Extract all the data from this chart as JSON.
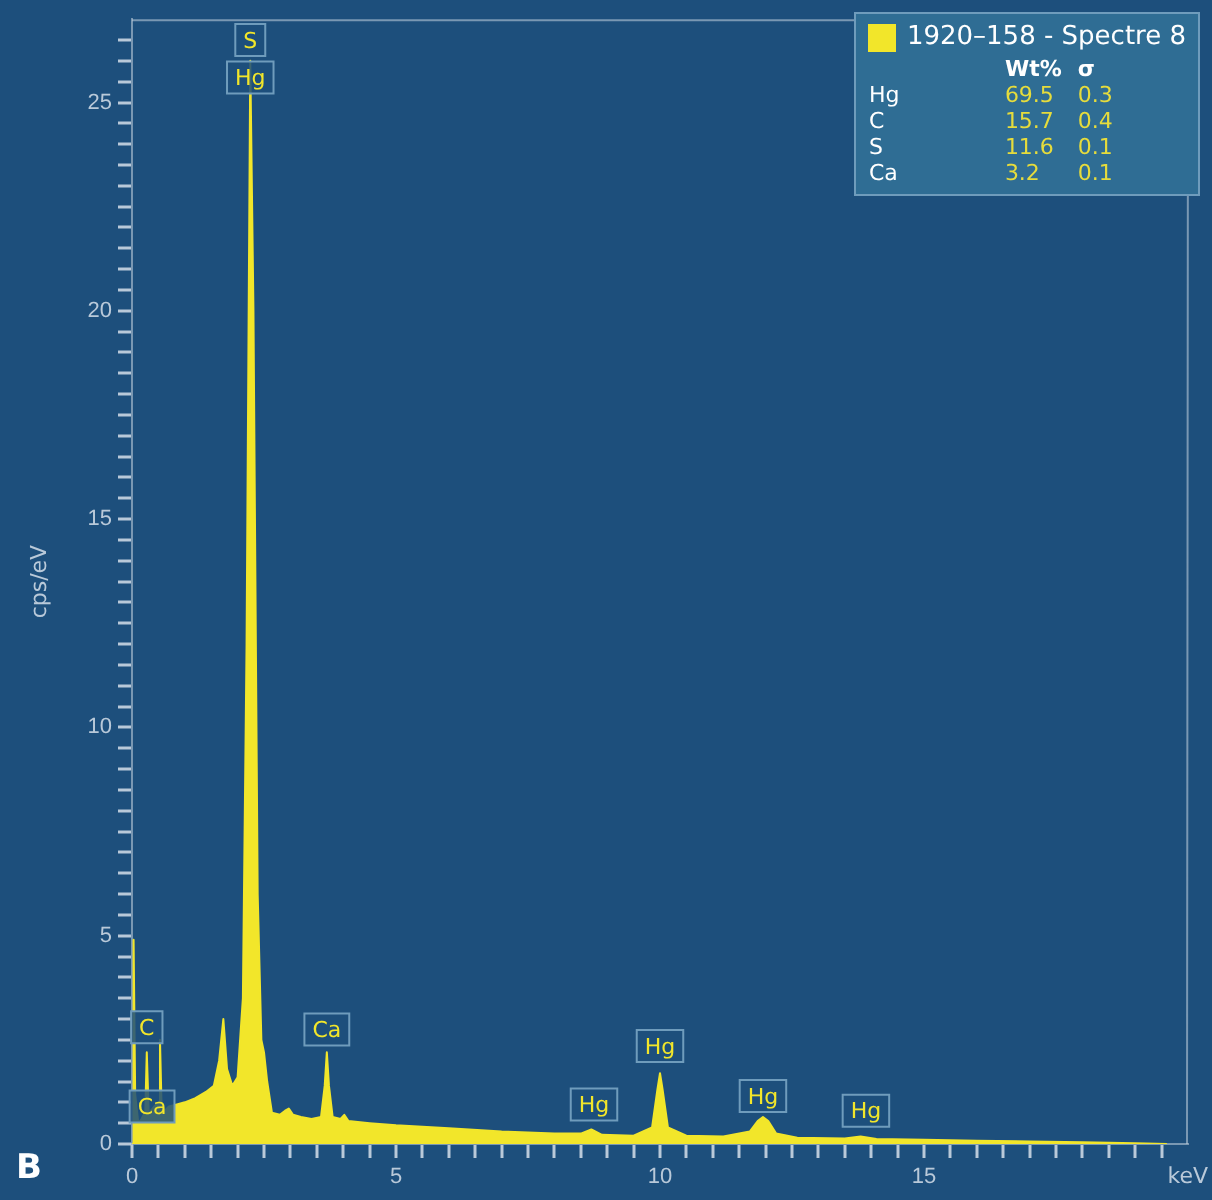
{
  "chart_data": {
    "type": "area",
    "xlabel": "keV",
    "ylabel": "cps/eV",
    "xlim": [
      0,
      20
    ],
    "ylim": [
      0,
      27
    ],
    "xticks": [
      0,
      {
        "value": 0.5,
        "label": null
      },
      {
        "value": 1,
        "label": null
      },
      {
        "value": 1.5,
        "label": null
      },
      {
        "value": 2,
        "label": null
      },
      {
        "value": 2.5,
        "label": null
      },
      {
        "value": 3,
        "label": null
      },
      {
        "value": 3.5,
        "label": null
      },
      {
        "value": 4,
        "label": null
      },
      {
        "value": 4.5,
        "label": null
      },
      5,
      {
        "value": 5.5,
        "label": null
      },
      {
        "value": 6,
        "label": null
      },
      {
        "value": 6.5,
        "label": null
      },
      {
        "value": 7,
        "label": null
      },
      {
        "value": 7.5,
        "label": null
      },
      {
        "value": 8,
        "label": null
      },
      {
        "value": 8.5,
        "label": null
      },
      {
        "value": 9,
        "label": null
      },
      {
        "value": 9.5,
        "label": null
      },
      10,
      {
        "value": 10.5,
        "label": null
      },
      {
        "value": 11,
        "label": null
      },
      {
        "value": 11.5,
        "label": null
      },
      {
        "value": 12,
        "label": null
      },
      {
        "value": 12.5,
        "label": null
      },
      {
        "value": 13,
        "label": null
      },
      {
        "value": 13.5,
        "label": null
      },
      {
        "value": 14,
        "label": null
      },
      {
        "value": 14.5,
        "label": null
      },
      15,
      {
        "value": 15.5,
        "label": null
      },
      {
        "value": 16,
        "label": null
      },
      {
        "value": 16.5,
        "label": null
      },
      {
        "value": 17,
        "label": null
      },
      {
        "value": 17.5,
        "label": null
      },
      {
        "value": 18,
        "label": null
      },
      {
        "value": 18.5,
        "label": null
      },
      {
        "value": 19,
        "label": null
      },
      {
        "value": 19.5,
        "label": null
      }
    ],
    "yticks": [
      0,
      {
        "value": 0.5,
        "label": null
      },
      {
        "value": 1,
        "label": null
      },
      {
        "value": 1.5,
        "label": null
      },
      {
        "value": 2,
        "label": null
      },
      {
        "value": 2.5,
        "label": null
      },
      {
        "value": 3,
        "label": null
      },
      {
        "value": 3.5,
        "label": null
      },
      {
        "value": 4,
        "label": null
      },
      {
        "value": 4.5,
        "label": null
      },
      5,
      {
        "value": 5.5,
        "label": null
      },
      {
        "value": 6,
        "label": null
      },
      {
        "value": 6.5,
        "label": null
      },
      {
        "value": 7,
        "label": null
      },
      {
        "value": 7.5,
        "label": null
      },
      {
        "value": 8,
        "label": null
      },
      {
        "value": 8.5,
        "label": null
      },
      {
        "value": 9,
        "label": null
      },
      {
        "value": 9.5,
        "label": null
      },
      10,
      {
        "value": 10.5,
        "label": null
      },
      {
        "value": 11,
        "label": null
      },
      {
        "value": 11.5,
        "label": null
      },
      {
        "value": 12,
        "label": null
      },
      {
        "value": 12.5,
        "label": null
      },
      {
        "value": 13,
        "label": null
      },
      {
        "value": 13.5,
        "label": null
      },
      {
        "value": 14,
        "label": null
      },
      {
        "value": 14.5,
        "label": null
      },
      15,
      {
        "value": 15.5,
        "label": null
      },
      {
        "value": 16,
        "label": null
      },
      {
        "value": 16.5,
        "label": null
      },
      {
        "value": 17,
        "label": null
      },
      {
        "value": 17.5,
        "label": null
      },
      {
        "value": 18,
        "label": null
      },
      {
        "value": 18.5,
        "label": null
      },
      {
        "value": 19,
        "label": null
      },
      {
        "value": 19.5,
        "label": null
      },
      20,
      {
        "value": 20.5,
        "label": null
      },
      {
        "value": 21,
        "label": null
      },
      {
        "value": 21.5,
        "label": null
      },
      {
        "value": 22,
        "label": null
      },
      {
        "value": 22.5,
        "label": null
      },
      {
        "value": 23,
        "label": null
      },
      {
        "value": 23.5,
        "label": null
      },
      {
        "value": 24,
        "label": null
      },
      {
        "value": 24.5,
        "label": null
      },
      25,
      {
        "value": 25.5,
        "label": null
      },
      {
        "value": 26,
        "label": null
      },
      {
        "value": 26.5,
        "label": null
      }
    ],
    "grid": false,
    "legend": "top right",
    "series": [
      {
        "name": "1920–158  - Spectre 8",
        "color": "#f2e62a",
        "x": [
          0,
          0.03,
          0.06,
          0.12,
          0.18,
          0.22,
          0.25,
          0.28,
          0.32,
          0.36,
          0.42,
          0.5,
          0.53,
          0.56,
          0.62,
          0.7,
          0.85,
          1.0,
          1.2,
          1.4,
          1.55,
          1.65,
          1.73,
          1.8,
          1.9,
          2.0,
          2.1,
          2.17,
          2.24,
          2.3,
          2.38,
          2.45,
          2.5,
          2.56,
          2.65,
          2.8,
          2.9,
          2.97,
          3.05,
          3.2,
          3.4,
          3.58,
          3.65,
          3.69,
          3.73,
          3.8,
          3.95,
          4.02,
          4.1,
          4.5,
          5,
          6,
          7,
          8,
          8.5,
          8.7,
          8.9,
          9.5,
          9.85,
          9.95,
          10.0,
          10.05,
          10.15,
          10.5,
          11.2,
          11.7,
          11.85,
          11.95,
          12.05,
          12.2,
          12.6,
          13.5,
          13.8,
          14.1,
          15,
          16,
          17,
          18,
          19,
          19.6
        ],
        "values": [
          0,
          4.9,
          1.2,
          0.5,
          0.6,
          0.7,
          0.7,
          2.2,
          0.6,
          0.8,
          0.9,
          1.0,
          2.5,
          0.9,
          0.8,
          0.9,
          0.95,
          1.0,
          1.1,
          1.25,
          1.4,
          2.0,
          3.0,
          1.8,
          1.4,
          1.6,
          3.5,
          12,
          26,
          20,
          6,
          2.5,
          2.2,
          1.5,
          0.75,
          0.7,
          0.8,
          0.85,
          0.7,
          0.65,
          0.6,
          0.65,
          1.4,
          2.2,
          1.4,
          0.65,
          0.6,
          0.7,
          0.55,
          0.5,
          0.45,
          0.38,
          0.3,
          0.25,
          0.25,
          0.35,
          0.22,
          0.2,
          0.4,
          1.3,
          1.7,
          1.3,
          0.4,
          0.2,
          0.18,
          0.3,
          0.55,
          0.65,
          0.55,
          0.25,
          0.15,
          0.13,
          0.18,
          0.12,
          0.1,
          0.08,
          0.06,
          0.04,
          0.02,
          0
        ]
      }
    ],
    "annotations": [
      "B",
      "Wt%",
      "σ",
      "Hg",
      "69.5",
      "0.3",
      "C",
      "15.7",
      "0.4",
      "S",
      "11.6",
      "0.1",
      "Ca",
      "3.2",
      "0.1",
      {
        "text": "S",
        "x": 2.24,
        "y": 26.5
      },
      {
        "text": "Hg",
        "x": 2.24,
        "y": 25.6
      },
      {
        "text": "C",
        "x": 0.28,
        "y": 2.8
      },
      {
        "text": "Ca",
        "x": 0.38,
        "y": 0.9
      },
      {
        "text": "Ca",
        "x": 3.69,
        "y": 2.75
      },
      {
        "text": "Hg",
        "x": 8.75,
        "y": 0.95
      },
      {
        "text": "Hg",
        "x": 10.0,
        "y": 2.35
      },
      {
        "text": "Hg",
        "x": 11.95,
        "y": 1.15
      },
      {
        "text": "Hg",
        "x": 13.9,
        "y": 0.8
      }
    ]
  }
}
